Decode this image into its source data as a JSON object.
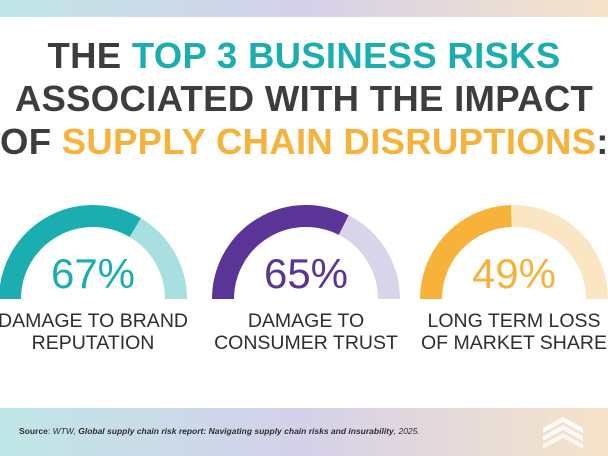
{
  "title": {
    "line1_a": "THE ",
    "line1_b": "TOP 3 BUSINESS RISKS",
    "line2": "ASSOCIATED WITH THE IMPACT",
    "line3_a": "OF ",
    "line3_b": "SUPPLY CHAIN DISRUPTIONS",
    "line3_c": ":"
  },
  "colors": {
    "title_dark": "#3d3d3d",
    "teal": "#1aaeb0",
    "purple": "#5a3497",
    "orange": "#f7b23a"
  },
  "chart_data": {
    "type": "gauge",
    "unit": "%",
    "max": 100,
    "items": [
      {
        "value": 67,
        "value_label": "67%",
        "label_line1": "DAMAGE TO BRAND",
        "label_line2": "REPUTATION",
        "color": "#1aaeb0",
        "track_color": "#a8e0e1"
      },
      {
        "value": 65,
        "value_label": "65%",
        "label_line1": "DAMAGE TO",
        "label_line2": "CONSUMER TRUST",
        "color": "#5a3497",
        "track_color": "#d9d4ea"
      },
      {
        "value": 49,
        "value_label": "49%",
        "label_line1": "LONG TERM LOSS",
        "label_line2": "OF MARKET SHARE",
        "color": "#f7b23a",
        "track_color": "#fbe6c4"
      }
    ]
  },
  "source": {
    "label": "Source",
    "sep": ": ",
    "org": "WTW, ",
    "report": "Global supply chain risk report: Navigating supply chain risks and insurability",
    "year": ", 2025."
  },
  "logo_icon": "stacked-chevrons-logo"
}
